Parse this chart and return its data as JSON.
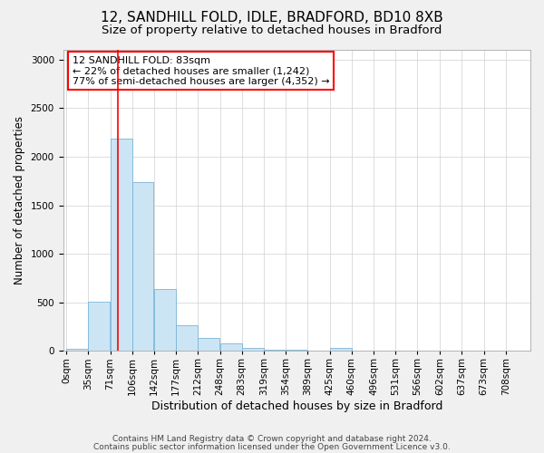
{
  "title": "12, SANDHILL FOLD, IDLE, BRADFORD, BD10 8XB",
  "subtitle": "Size of property relative to detached houses in Bradford",
  "xlabel": "Distribution of detached houses by size in Bradford",
  "ylabel": "Number of detached properties",
  "footnote1": "Contains HM Land Registry data © Crown copyright and database right 2024.",
  "footnote2": "Contains public sector information licensed under the Open Government Licence v3.0.",
  "annotation_line1": "12 SANDHILL FOLD: 83sqm",
  "annotation_line2": "← 22% of detached houses are smaller (1,242)",
  "annotation_line3": "77% of semi-detached houses are larger (4,352) →",
  "bar_color": "#cce5f5",
  "bar_edge_color": "#7ab5d8",
  "red_line_x": 83,
  "categories": [
    "0sqm",
    "35sqm",
    "71sqm",
    "106sqm",
    "142sqm",
    "177sqm",
    "212sqm",
    "248sqm",
    "283sqm",
    "319sqm",
    "354sqm",
    "389sqm",
    "425sqm",
    "460sqm",
    "496sqm",
    "531sqm",
    "566sqm",
    "602sqm",
    "637sqm",
    "673sqm",
    "708sqm"
  ],
  "bin_starts": [
    0,
    35,
    71,
    106,
    142,
    177,
    212,
    248,
    283,
    319,
    354,
    389,
    425,
    460,
    496,
    531,
    566,
    602,
    637,
    673,
    708
  ],
  "bin_width": 35,
  "values": [
    25,
    510,
    2185,
    1740,
    640,
    260,
    130,
    75,
    35,
    15,
    10,
    5,
    30,
    5,
    0,
    0,
    0,
    0,
    0,
    0,
    0
  ],
  "ylim": [
    0,
    3100
  ],
  "yticks": [
    0,
    500,
    1000,
    1500,
    2000,
    2500,
    3000
  ],
  "background_color": "#f0f0f0",
  "plot_bg_color": "#ffffff",
  "title_fontsize": 11,
  "subtitle_fontsize": 9.5,
  "axis_label_fontsize": 9,
  "tick_fontsize": 7.5,
  "footnote_fontsize": 6.5,
  "ylabel_fontsize": 8.5
}
